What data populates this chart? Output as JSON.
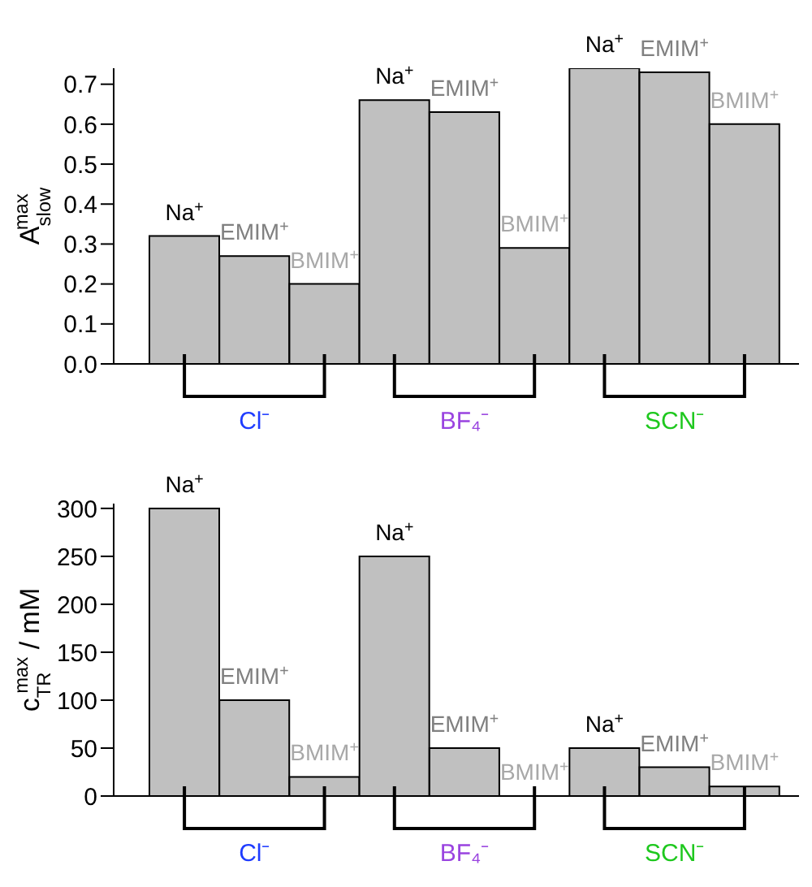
{
  "chart_data": [
    {
      "type": "bar",
      "ylabel": "A$_{slow}$$^{max}$",
      "categories": [
        null,
        "Cl⁻",
        null,
        null,
        "BF₄⁻",
        null,
        null,
        "SCN⁻",
        null
      ],
      "values": [
        0.32,
        0.27,
        0.2,
        0.66,
        0.63,
        0.29,
        0.74,
        0.73,
        0.6
      ],
      "color": "#c0c0c0",
      "value_labels": [
        "Na$^{+}$",
        "EMIM$^{+}$",
        "BMIM$^{+}$",
        "Na$^{+}$",
        "EMIM$^{+}$",
        "BMIM$^{+}$",
        "Na$^{+}$",
        "EMIM$^{+}$",
        "BMIM$^{+}$"
      ],
      "ylim": [
        0,
        0.74
      ],
      "yticks": [
        {
          "value": 0,
          "label": "0.0"
        },
        0.1,
        0.2,
        0.3,
        0.4,
        0.5,
        0.6,
        0.7
      ]
    },
    {
      "type": "bar",
      "ylabel": "c$_{TR}$$^{max}$ / mM",
      "categories": [
        null,
        "Cl⁻",
        null,
        null,
        "BF₄⁻",
        null,
        null,
        "SCN⁻",
        null
      ],
      "values": [
        300,
        100,
        20,
        250,
        50,
        0,
        50,
        30,
        10
      ],
      "color": "#c0c0c0",
      "value_labels": [
        "Na$^{+}$",
        "EMIM$^{+}$",
        "BMIM$^{+}$",
        "Na$^{+}$",
        "EMIM$^{+}$",
        "BMIM$^{+}$",
        "Na$^{+}$",
        "EMIM$^{+}$",
        "BMIM$^{+}$"
      ],
      "ylim": [
        0,
        305
      ],
      "yticks": [
        0,
        50,
        100,
        150,
        200,
        250,
        300
      ]
    }
  ]
}
